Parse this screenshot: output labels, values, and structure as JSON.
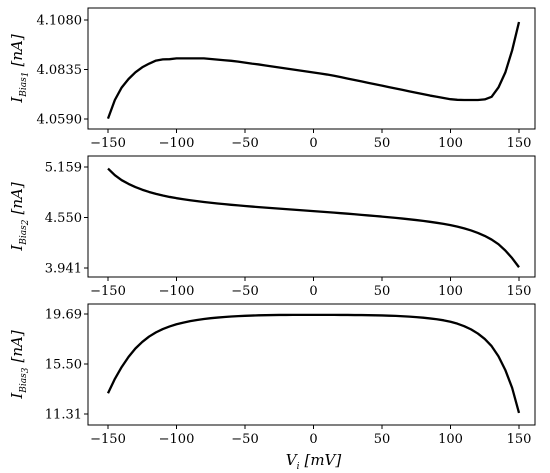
{
  "chart_data": [
    {
      "type": "line",
      "ylabel": {
        "main": "I",
        "sub": "Bias",
        "subsub": "1",
        "unit": "[nA]"
      },
      "xlim": [
        -150,
        150
      ],
      "ylim": [
        4.059,
        4.108
      ],
      "yticks": [
        4.059,
        4.0835,
        4.108
      ],
      "ytick_labels": [
        "4.0590",
        "4.0835",
        "4.1080"
      ],
      "xticks": [
        -150,
        -100,
        -50,
        0,
        50,
        100,
        150
      ],
      "xtick_labels": [
        "−150",
        "−100",
        "−50",
        "0",
        "50",
        "100",
        "150"
      ],
      "series": [
        {
          "x": [
            -150,
            -145,
            -140,
            -135,
            -130,
            -125,
            -120,
            -115,
            -110,
            -105,
            -100,
            -95,
            -90,
            -85,
            -80,
            -75,
            -70,
            -65,
            -60,
            -55,
            -50,
            -45,
            -40,
            -35,
            -30,
            -25,
            -20,
            -15,
            -10,
            -5,
            0,
            5,
            10,
            15,
            20,
            25,
            30,
            35,
            40,
            45,
            50,
            55,
            60,
            65,
            70,
            75,
            80,
            85,
            90,
            95,
            100,
            105,
            110,
            115,
            120,
            125,
            130,
            135,
            140,
            145,
            150
          ],
          "y": [
            4.0592,
            4.0684,
            4.0746,
            4.0788,
            4.0821,
            4.0846,
            4.0864,
            4.0879,
            4.0885,
            4.0886,
            4.089,
            4.089,
            4.089,
            4.089,
            4.089,
            4.0887,
            4.0884,
            4.0881,
            4.0878,
            4.0874,
            4.0869,
            4.0864,
            4.086,
            4.0855,
            4.085,
            4.0845,
            4.084,
            4.0835,
            4.083,
            4.0825,
            4.082,
            4.0815,
            4.081,
            4.0804,
            4.0797,
            4.079,
            4.0783,
            4.0776,
            4.0769,
            4.0762,
            4.0755,
            4.0748,
            4.0741,
            4.0734,
            4.0727,
            4.072,
            4.0713,
            4.0706,
            4.07,
            4.0694,
            4.0688,
            4.0685,
            4.0684,
            4.0684,
            4.0684,
            4.0687,
            4.07,
            4.0746,
            4.082,
            4.093,
            4.107
          ]
        }
      ]
    },
    {
      "type": "line",
      "ylabel": {
        "main": "I",
        "sub": "Bias",
        "subsub": "2",
        "unit": "[nA]"
      },
      "xlim": [
        -150,
        150
      ],
      "ylim": [
        3.941,
        5.159
      ],
      "yticks": [
        3.941,
        4.55,
        5.159
      ],
      "ytick_labels": [
        "3.941",
        "4.550",
        "5.159"
      ],
      "xticks": [
        -150,
        -100,
        -50,
        0,
        50,
        100,
        150
      ],
      "xtick_labels": [
        "−150",
        "−100",
        "−50",
        "0",
        "50",
        "100",
        "150"
      ],
      "series": [
        {
          "x": [
            -150,
            -145,
            -140,
            -135,
            -130,
            -125,
            -120,
            -115,
            -110,
            -105,
            -100,
            -95,
            -90,
            -85,
            -80,
            -75,
            -70,
            -65,
            -60,
            -55,
            -50,
            -45,
            -40,
            -35,
            -30,
            -25,
            -20,
            -15,
            -10,
            -5,
            0,
            5,
            10,
            15,
            20,
            25,
            30,
            35,
            40,
            45,
            50,
            55,
            60,
            65,
            70,
            75,
            80,
            85,
            90,
            95,
            100,
            105,
            110,
            115,
            120,
            125,
            130,
            135,
            140,
            145,
            150
          ],
          "y": [
            5.14,
            5.06,
            5.0,
            4.955,
            4.917,
            4.885,
            4.858,
            4.835,
            4.815,
            4.798,
            4.783,
            4.77,
            4.758,
            4.747,
            4.737,
            4.728,
            4.719,
            4.711,
            4.703,
            4.696,
            4.689,
            4.682,
            4.675,
            4.669,
            4.663,
            4.657,
            4.651,
            4.645,
            4.639,
            4.633,
            4.627,
            4.621,
            4.615,
            4.609,
            4.602,
            4.596,
            4.589,
            4.582,
            4.575,
            4.568,
            4.561,
            4.553,
            4.545,
            4.537,
            4.528,
            4.519,
            4.509,
            4.498,
            4.486,
            4.473,
            4.458,
            4.44,
            4.419,
            4.394,
            4.364,
            4.328,
            4.284,
            4.228,
            4.152,
            4.06,
            3.95
          ]
        }
      ]
    },
    {
      "type": "line",
      "ylabel": {
        "main": "I",
        "sub": "Bias",
        "subsub": "3",
        "unit": "[nA]"
      },
      "xlabel": {
        "main": "V",
        "sub": "i",
        "unit": "[mV]"
      },
      "xlim": [
        -150,
        150
      ],
      "ylim": [
        11.31,
        19.69
      ],
      "yticks": [
        11.31,
        15.5,
        19.69
      ],
      "ytick_labels": [
        "11.31",
        "15.50",
        "19.69"
      ],
      "xticks": [
        -150,
        -100,
        -50,
        0,
        50,
        100,
        150
      ],
      "xtick_labels": [
        "−150",
        "−100",
        "−50",
        "0",
        "50",
        "100",
        "150"
      ],
      "series": [
        {
          "x": [
            -150,
            -145,
            -140,
            -135,
            -130,
            -125,
            -120,
            -115,
            -110,
            -105,
            -100,
            -95,
            -90,
            -85,
            -80,
            -75,
            -70,
            -65,
            -60,
            -55,
            -50,
            -45,
            -40,
            -35,
            -30,
            -25,
            -20,
            -15,
            -10,
            -5,
            0,
            5,
            10,
            15,
            20,
            25,
            30,
            35,
            40,
            45,
            50,
            55,
            60,
            65,
            70,
            75,
            80,
            85,
            90,
            95,
            100,
            105,
            110,
            115,
            120,
            125,
            130,
            135,
            140,
            145,
            150
          ],
          "y": [
            13.05,
            14.25,
            15.25,
            16.1,
            16.8,
            17.35,
            17.8,
            18.15,
            18.43,
            18.65,
            18.83,
            18.97,
            19.09,
            19.19,
            19.27,
            19.34,
            19.39,
            19.44,
            19.48,
            19.51,
            19.54,
            19.56,
            19.58,
            19.59,
            19.6,
            19.61,
            19.61,
            19.62,
            19.62,
            19.62,
            19.62,
            19.62,
            19.62,
            19.62,
            19.61,
            19.61,
            19.6,
            19.6,
            19.59,
            19.58,
            19.57,
            19.55,
            19.53,
            19.5,
            19.47,
            19.43,
            19.38,
            19.32,
            19.25,
            19.16,
            19.04,
            18.88,
            18.67,
            18.4,
            18.05,
            17.6,
            17.0,
            16.15,
            15.0,
            13.5,
            11.4
          ]
        }
      ]
    }
  ]
}
